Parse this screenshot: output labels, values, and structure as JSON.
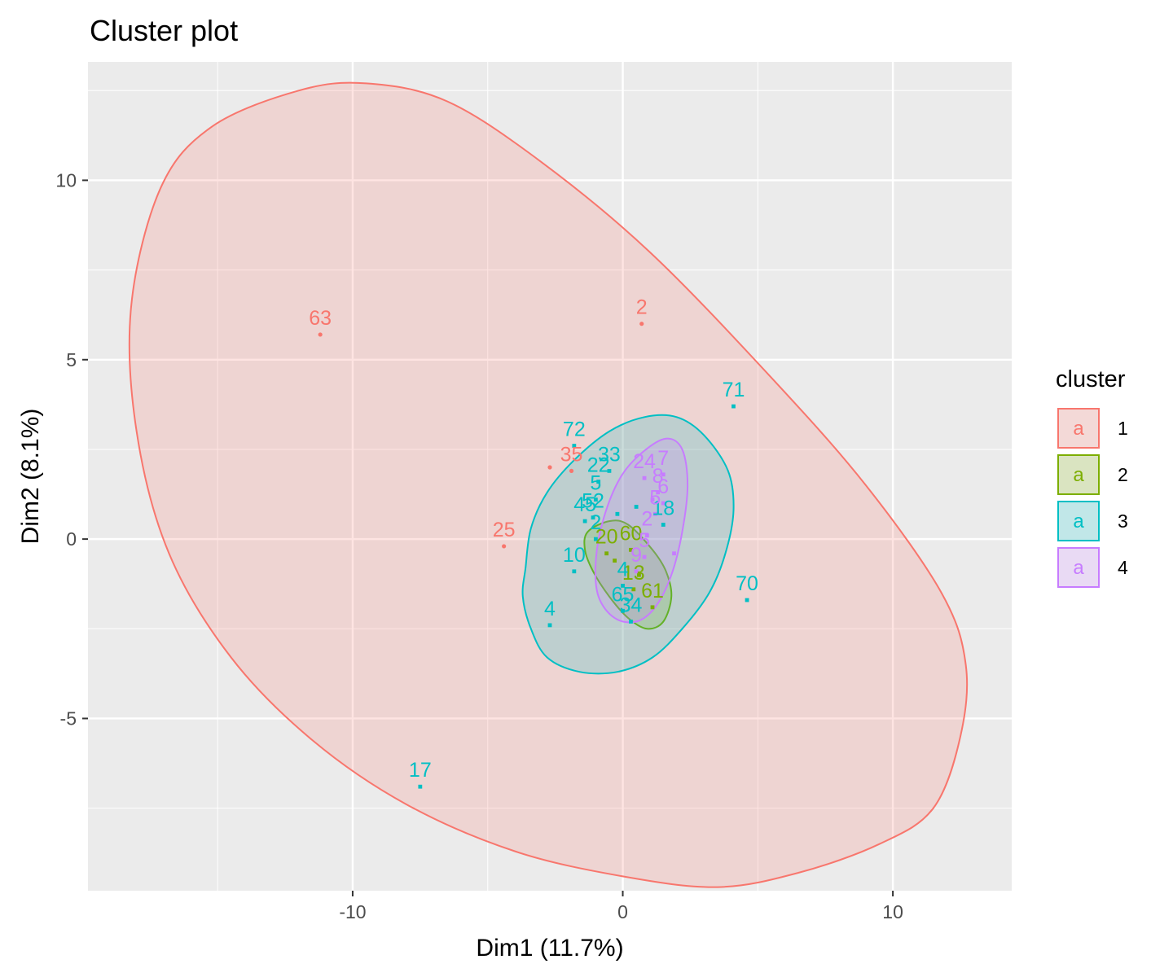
{
  "chart_data": {
    "type": "scatter",
    "title": "Cluster plot",
    "xlabel": "Dim1 (11.7%)",
    "ylabel": "Dim2 (8.1%)",
    "xlim": [
      -19.8,
      14.4
    ],
    "ylim": [
      -9.8,
      13.3
    ],
    "x_ticks": [
      -10,
      0,
      10
    ],
    "y_ticks": [
      -5,
      0,
      5,
      10
    ],
    "x_tick_labels": [
      "-10",
      "0",
      "10"
    ],
    "y_tick_labels": [
      "-5",
      "0",
      "5",
      "10"
    ],
    "grid": true,
    "legend": {
      "title": "cluster",
      "position": "right",
      "key_glyph": "a"
    },
    "clusters": [
      {
        "name": "1",
        "color": "#F8766D",
        "ellipse": [
          [
            -18.2,
            6.5
          ],
          [
            -17.1,
            9.8
          ],
          [
            -15.2,
            11.5
          ],
          [
            -12,
            12.5
          ],
          [
            -9.5,
            12.7
          ],
          [
            -6.5,
            12.2
          ],
          [
            -3,
            10.5
          ],
          [
            1,
            8
          ],
          [
            5.5,
            4.5
          ],
          [
            9,
            1.5
          ],
          [
            11.8,
            -1.5
          ],
          [
            12.7,
            -3.5
          ],
          [
            12.5,
            -5.5
          ],
          [
            11.5,
            -7.5
          ],
          [
            9.5,
            -8.5
          ],
          [
            6.5,
            -9.3
          ],
          [
            3.5,
            -9.7
          ],
          [
            0,
            -9.4
          ],
          [
            -4,
            -8.7
          ],
          [
            -8,
            -7.4
          ],
          [
            -11.5,
            -5.6
          ],
          [
            -14.5,
            -3.3
          ],
          [
            -16.8,
            -0.4
          ],
          [
            -18,
            3
          ]
        ],
        "points": [
          {
            "x": -11.2,
            "y": 5.7,
            "label": "63"
          },
          {
            "x": 0.7,
            "y": 6.0,
            "label": "2"
          },
          {
            "x": -1.9,
            "y": 1.9,
            "label": "35"
          },
          {
            "x": -4.4,
            "y": -0.2,
            "label": "25"
          },
          {
            "x": -2.7,
            "y": 2.0,
            "label": ""
          }
        ]
      },
      {
        "name": "2",
        "color": "#7CAE00",
        "ellipse": [
          [
            -1.3,
            0.2
          ],
          [
            -0.5,
            0.5
          ],
          [
            0.2,
            0.4
          ],
          [
            1.1,
            -0.3
          ],
          [
            1.6,
            -0.9
          ],
          [
            1.8,
            -1.6
          ],
          [
            1.5,
            -2.3
          ],
          [
            0.9,
            -2.5
          ],
          [
            0.2,
            -2.2
          ],
          [
            -0.5,
            -1.6
          ],
          [
            -1.1,
            -0.9
          ],
          [
            -1.4,
            -0.3
          ]
        ],
        "points": [
          {
            "x": -0.6,
            "y": -0.4,
            "label": "20"
          },
          {
            "x": 0.3,
            "y": -0.3,
            "label": "60"
          },
          {
            "x": 0.4,
            "y": -1.4,
            "label": "13"
          },
          {
            "x": 1.1,
            "y": -1.9,
            "label": "61"
          },
          {
            "x": 0.6,
            "y": -1.0,
            "label": ""
          },
          {
            "x": -0.3,
            "y": -0.6,
            "label": ""
          }
        ]
      },
      {
        "name": "3",
        "color": "#00BFC4",
        "ellipse": [
          [
            -3.6,
            -0.8
          ],
          [
            -3.4,
            0.3
          ],
          [
            -2.8,
            1.3
          ],
          [
            -1.8,
            2.2
          ],
          [
            -0.5,
            3
          ],
          [
            0.8,
            3.4
          ],
          [
            2,
            3.4
          ],
          [
            3,
            2.9
          ],
          [
            3.9,
            1.9
          ],
          [
            4.1,
            0.8
          ],
          [
            3.8,
            -0.4
          ],
          [
            3.2,
            -1.5
          ],
          [
            2.2,
            -2.5
          ],
          [
            1.1,
            -3.3
          ],
          [
            -0.2,
            -3.7
          ],
          [
            -1.6,
            -3.7
          ],
          [
            -2.8,
            -3.3
          ],
          [
            -3.4,
            -2.5
          ],
          [
            -3.7,
            -1.6
          ]
        ],
        "points": [
          {
            "x": -1.8,
            "y": 2.6,
            "label": "72"
          },
          {
            "x": -0.5,
            "y": 1.9,
            "label": "33"
          },
          {
            "x": -0.9,
            "y": 1.6,
            "label": "22"
          },
          {
            "x": -1.0,
            "y": 1.1,
            "label": "5"
          },
          {
            "x": -1.1,
            "y": 0.6,
            "label": "52"
          },
          {
            "x": -1.4,
            "y": 0.5,
            "label": "45"
          },
          {
            "x": -1.0,
            "y": 0.0,
            "label": "2"
          },
          {
            "x": -1.8,
            "y": -0.9,
            "label": "10"
          },
          {
            "x": -2.7,
            "y": -2.4,
            "label": "4"
          },
          {
            "x": 4.1,
            "y": 3.7,
            "label": "71"
          },
          {
            "x": 4.6,
            "y": -1.7,
            "label": "70"
          },
          {
            "x": -7.5,
            "y": -6.9,
            "label": "17"
          },
          {
            "x": 1.5,
            "y": 0.4,
            "label": "18"
          },
          {
            "x": 0.0,
            "y": -2.0,
            "label": "65"
          },
          {
            "x": 0.3,
            "y": -2.3,
            "label": "34"
          },
          {
            "x": 0.0,
            "y": -1.3,
            "label": "4"
          },
          {
            "x": 0.5,
            "y": 0.9,
            "label": ""
          },
          {
            "x": -0.2,
            "y": 0.7,
            "label": ""
          }
        ]
      },
      {
        "name": "4",
        "color": "#C77CFF",
        "ellipse": [
          [
            -1.0,
            -0.6
          ],
          [
            -0.7,
            0.6
          ],
          [
            -0.1,
            1.7
          ],
          [
            0.7,
            2.4
          ],
          [
            1.6,
            2.8
          ],
          [
            2.2,
            2.5
          ],
          [
            2.4,
            1.5
          ],
          [
            2.2,
            0.2
          ],
          [
            1.8,
            -1.0
          ],
          [
            1.2,
            -1.9
          ],
          [
            0.5,
            -2.3
          ],
          [
            -0.3,
            -2.2
          ],
          [
            -0.9,
            -1.6
          ]
        ],
        "points": [
          {
            "x": 1.5,
            "y": 1.8,
            "label": "7"
          },
          {
            "x": 0.8,
            "y": 1.7,
            "label": "24"
          },
          {
            "x": 1.3,
            "y": 1.3,
            "label": "8"
          },
          {
            "x": 1.5,
            "y": 1.0,
            "label": "6"
          },
          {
            "x": 1.2,
            "y": 0.7,
            "label": "5"
          },
          {
            "x": 0.9,
            "y": 0.1,
            "label": "2"
          },
          {
            "x": 0.8,
            "y": -0.5,
            "label": "5"
          },
          {
            "x": 0.5,
            "y": -0.9,
            "label": "9"
          },
          {
            "x": 1.9,
            "y": -0.4,
            "label": ""
          },
          {
            "x": 1.1,
            "y": 1.1,
            "label": ""
          }
        ]
      }
    ]
  }
}
